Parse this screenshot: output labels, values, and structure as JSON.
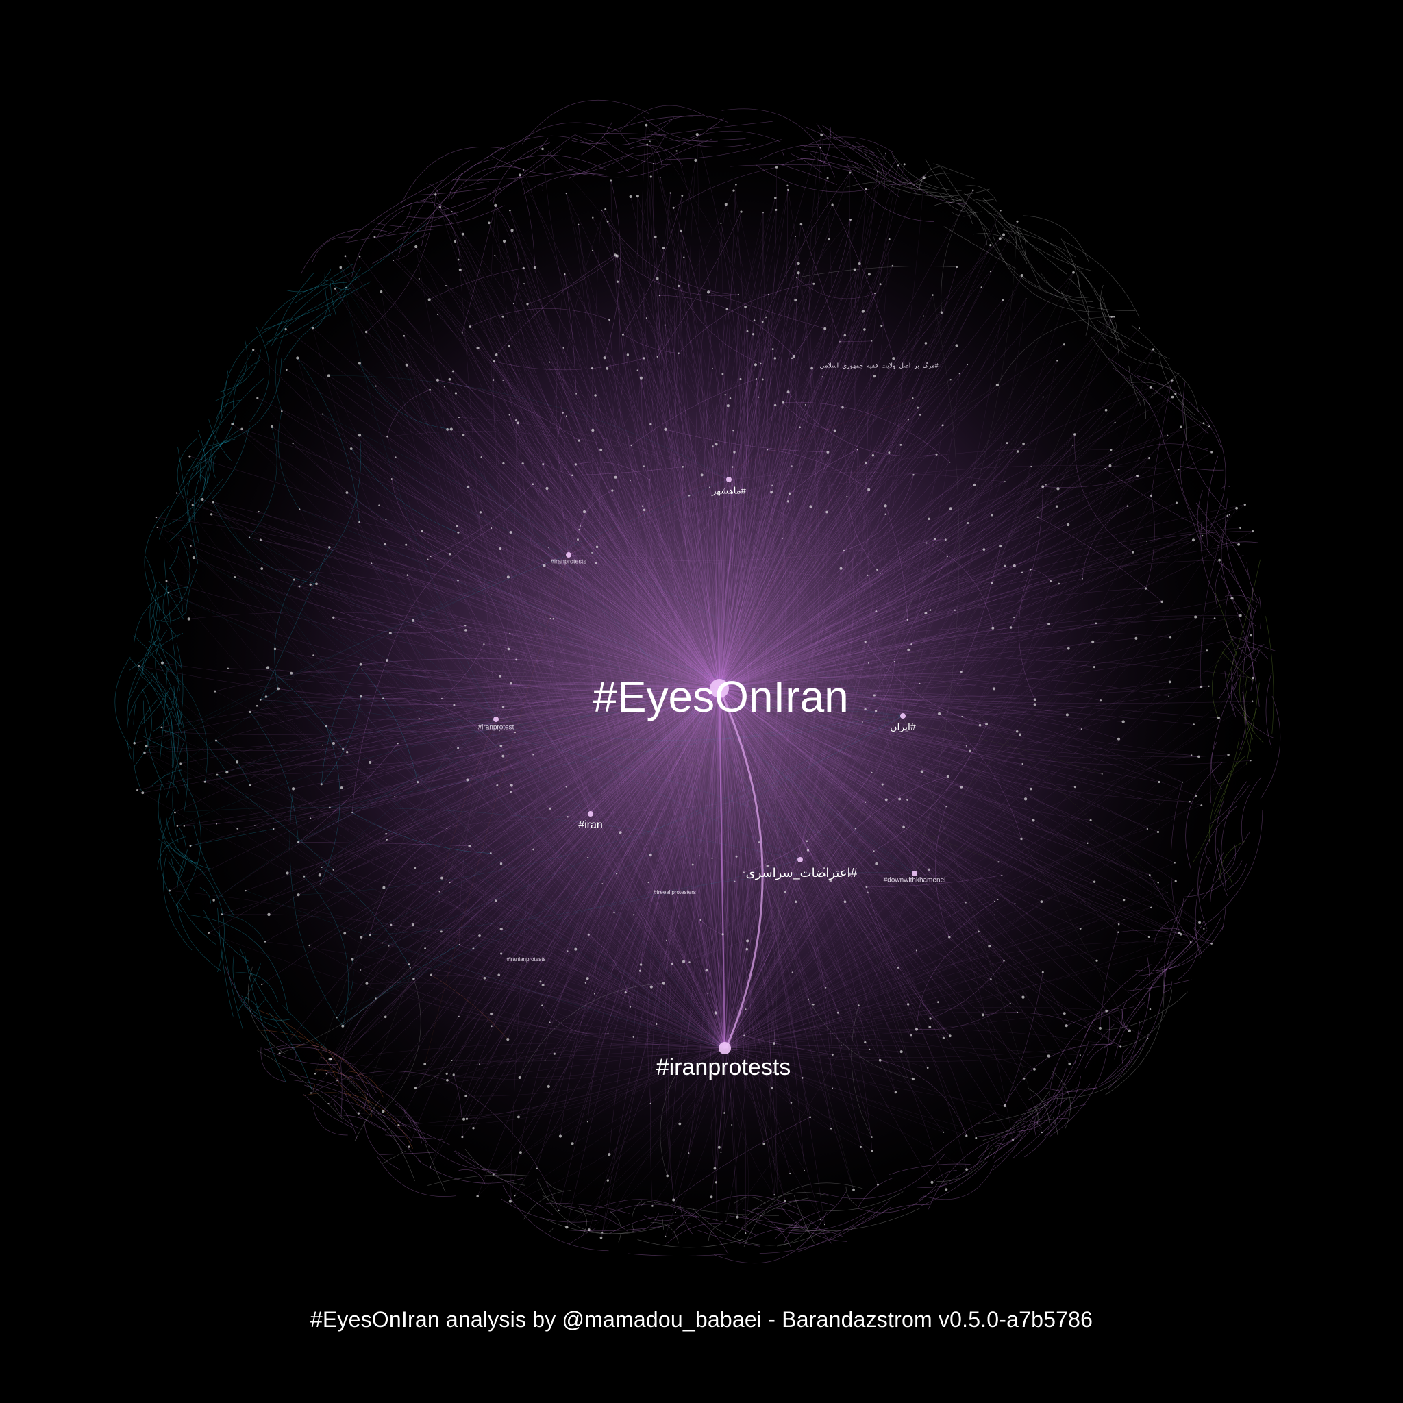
{
  "caption": "#EyesOnIran analysis by @mamadou_babaei - Barandazstrom v0.5.0-a7b5786",
  "colors": {
    "background": "#000000",
    "primary_cluster": "#c77dde",
    "cyan_cluster": "#1fb8d6",
    "grey_cluster": "#b9b9b9",
    "orange_cluster": "#e0703a",
    "green_cluster": "#7fa83a",
    "red_cluster": "#d0304a",
    "label": "#ffffff"
  },
  "hubs": [
    {
      "id": "eyesoniran",
      "label": "#EyesOnIran",
      "size": "large"
    },
    {
      "id": "iranprotests",
      "label": "#iranprotests",
      "size": "medium"
    },
    {
      "id": "eterazat",
      "label": "#اعتراضات_سراسری",
      "size": "small"
    },
    {
      "id": "iran",
      "label": "#iran",
      "size": "small"
    },
    {
      "id": "iran-fa",
      "label": "#ایران",
      "size": "small"
    },
    {
      "id": "mahshahr",
      "label": "#ماهشهر",
      "size": "small"
    },
    {
      "id": "downwithkhamenei",
      "label": "#downwithkhamenei",
      "size": "tiny"
    },
    {
      "id": "iranprotests-2",
      "label": "#iranprotests",
      "size": "tiny"
    },
    {
      "id": "iranprotest",
      "label": "#iranprotest",
      "size": "tiny"
    },
    {
      "id": "marg",
      "label": "#مرگ_بر_اصل_ولایت_فقیه_جمهوری_اسلامی",
      "size": "tiny"
    },
    {
      "id": "freeallprotesters",
      "label": "#freeallprotesters",
      "size": "tiny"
    },
    {
      "id": "iranianprotests",
      "label": "#iranianprotests",
      "size": "tiny"
    }
  ]
}
